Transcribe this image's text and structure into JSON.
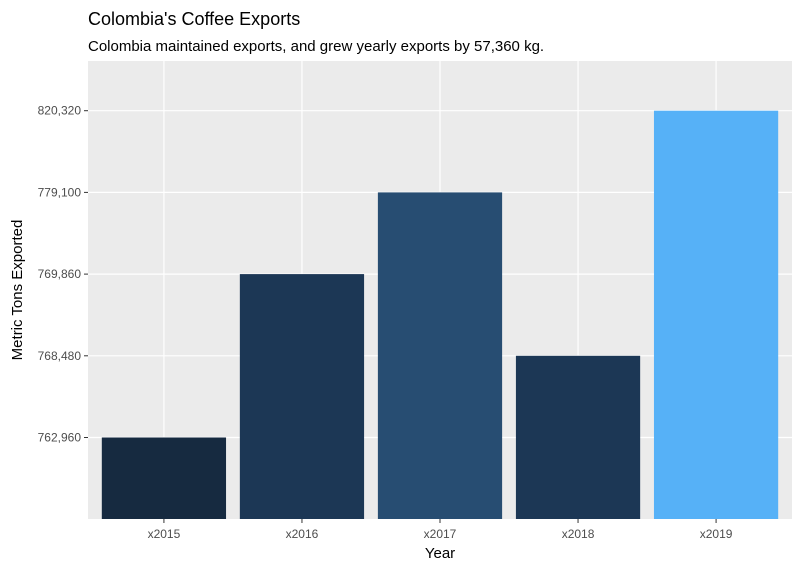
{
  "chart_data": {
    "type": "bar",
    "title": "Colombia's Coffee Exports",
    "subtitle": "Colombia maintained exports, and grew yearly exports by 57,360 kg.",
    "xlabel": "Year",
    "ylabel": "Metric Tons Exported",
    "categories": [
      "x2015",
      "x2016",
      "x2017",
      "x2018",
      "x2019"
    ],
    "values": [
      762960,
      769860,
      779100,
      768480,
      820320
    ],
    "y_tick_labels": [
      "762,960",
      "768,480",
      "769,860",
      "779,100",
      "820,320"
    ],
    "y_axis_note": "discrete rank-ordered axis: ticks equally spaced in sorted order of values",
    "bar_colors": [
      "#162a40",
      "#1c3755",
      "#274d72",
      "#1c3755",
      "#56b1f7"
    ],
    "panel_background": "#ebebeb",
    "grid": true,
    "legend": "none"
  }
}
